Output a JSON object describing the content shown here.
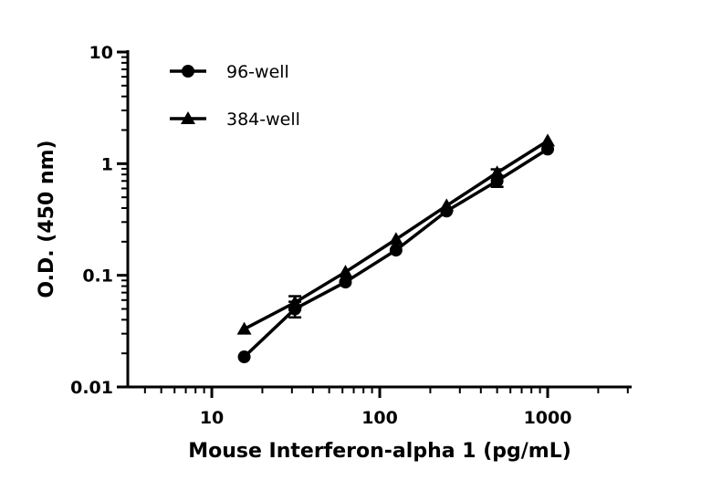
{
  "chart_data": {
    "type": "line",
    "title": "",
    "xlabel": "Mouse Interferon-alpha 1 (pg/mL)",
    "ylabel": "O.D. (450 nm)",
    "xscale": "log",
    "yscale": "log",
    "xlim": [
      3.16,
      3162
    ],
    "ylim": [
      0.01,
      10
    ],
    "xticks": [
      {
        "value": 10,
        "label": "10"
      },
      {
        "value": 100,
        "label": "100"
      },
      {
        "value": 1000,
        "label": "1000"
      }
    ],
    "yticks": [
      {
        "value": 0.01,
        "label": "0.01"
      },
      {
        "value": 0.1,
        "label": "0.1"
      },
      {
        "value": 1,
        "label": "1"
      },
      {
        "value": 10,
        "label": "10"
      }
    ],
    "grid": false,
    "legend_position": "top-left",
    "color": "#000000",
    "x": [
      15.6,
      31.25,
      62.5,
      125,
      250,
      500,
      1000
    ],
    "series": [
      {
        "name": "96-well",
        "marker": "circle",
        "values": [
          0.0186,
          0.05,
          0.087,
          0.168,
          0.376,
          0.7,
          1.35
        ],
        "error": [
          0,
          0.008,
          0,
          0,
          0,
          0.08,
          0
        ]
      },
      {
        "name": "384-well",
        "marker": "triangle",
        "values": [
          0.033,
          0.057,
          0.107,
          0.21,
          0.42,
          0.83,
          1.6
        ],
        "error": [
          0,
          0.008,
          0,
          0,
          0,
          0.06,
          0
        ]
      }
    ]
  }
}
